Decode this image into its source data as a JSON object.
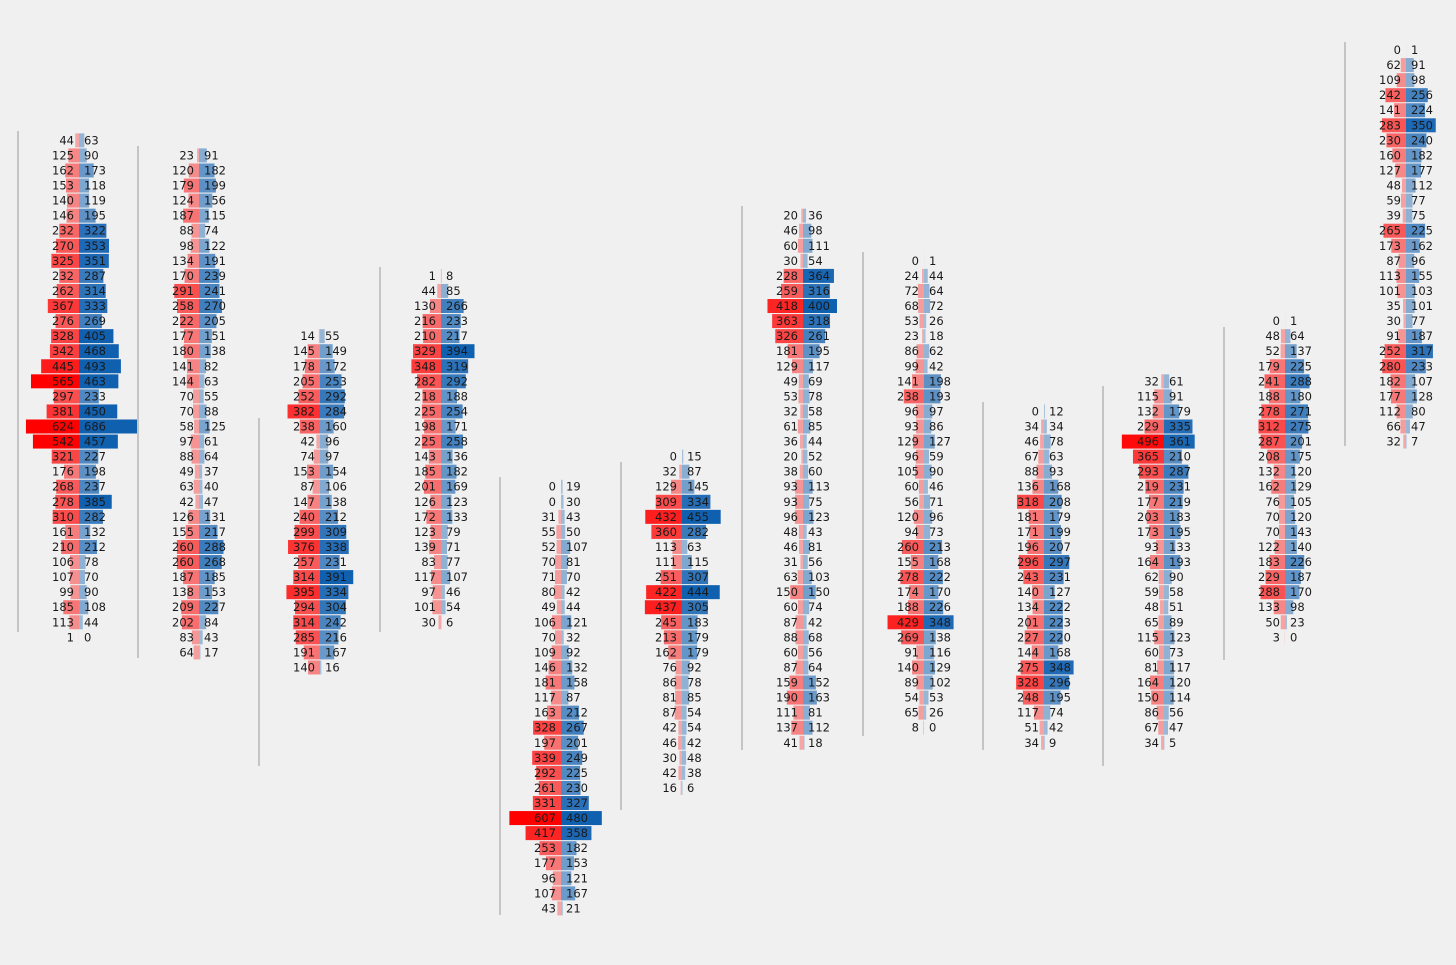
{
  "chart_data": {
    "type": "footprint",
    "title": "",
    "xlabel": "",
    "ylabel": "",
    "colors": {
      "bid": "#ff0000",
      "ask": "#1060b0",
      "background": "#f0f0f0",
      "wick": "#333333"
    },
    "candles": [
      {
        "rows": [
          [
            44,
            63
          ],
          [
            125,
            90
          ],
          [
            162,
            173
          ],
          [
            153,
            118
          ],
          [
            140,
            119
          ],
          [
            146,
            195
          ],
          [
            232,
            322
          ],
          [
            270,
            353
          ],
          [
            325,
            351
          ],
          [
            232,
            287
          ],
          [
            262,
            314
          ],
          [
            367,
            333
          ],
          [
            276,
            269
          ],
          [
            328,
            405
          ],
          [
            342,
            468
          ],
          [
            445,
            493
          ],
          [
            565,
            463
          ],
          [
            297,
            233
          ],
          [
            381,
            450
          ],
          [
            624,
            686
          ],
          [
            542,
            457
          ],
          [
            321,
            227
          ],
          [
            176,
            198
          ],
          [
            268,
            237
          ],
          [
            278,
            385
          ],
          [
            310,
            282
          ],
          [
            161,
            132
          ],
          [
            210,
            212
          ],
          [
            106,
            78
          ],
          [
            107,
            70
          ],
          [
            99,
            90
          ],
          [
            185,
            108
          ],
          [
            113,
            44
          ],
          [
            1,
            0
          ]
        ]
      },
      {
        "rows": [
          [
            23,
            91
          ],
          [
            120,
            182
          ],
          [
            179,
            199
          ],
          [
            124,
            156
          ],
          [
            187,
            115
          ],
          [
            88,
            74
          ],
          [
            98,
            122
          ],
          [
            134,
            191
          ],
          [
            170,
            239
          ],
          [
            291,
            241
          ],
          [
            258,
            270
          ],
          [
            222,
            205
          ],
          [
            177,
            151
          ],
          [
            180,
            138
          ],
          [
            141,
            82
          ],
          [
            144,
            63
          ],
          [
            70,
            55
          ],
          [
            70,
            88
          ],
          [
            58,
            125
          ],
          [
            97,
            61
          ],
          [
            88,
            64
          ],
          [
            49,
            37
          ],
          [
            63,
            40
          ],
          [
            42,
            47
          ],
          [
            126,
            131
          ],
          [
            155,
            217
          ],
          [
            260,
            288
          ],
          [
            260,
            268
          ],
          [
            187,
            185
          ],
          [
            138,
            153
          ],
          [
            209,
            227
          ],
          [
            202,
            84
          ],
          [
            83,
            43
          ],
          [
            64,
            17
          ]
        ]
      },
      {
        "rows": [
          [
            14,
            55
          ],
          [
            145,
            149
          ],
          [
            178,
            172
          ],
          [
            205,
            253
          ],
          [
            252,
            292
          ],
          [
            382,
            284
          ],
          [
            238,
            160
          ],
          [
            42,
            96
          ],
          [
            74,
            97
          ],
          [
            153,
            154
          ],
          [
            87,
            106
          ],
          [
            147,
            138
          ],
          [
            240,
            212
          ],
          [
            299,
            309
          ],
          [
            376,
            338
          ],
          [
            257,
            231
          ],
          [
            314,
            391
          ],
          [
            395,
            334
          ],
          [
            294,
            304
          ],
          [
            314,
            242
          ],
          [
            285,
            216
          ],
          [
            191,
            167
          ],
          [
            140,
            16
          ]
        ]
      },
      {
        "rows": [
          [
            1,
            8
          ],
          [
            44,
            85
          ],
          [
            130,
            266
          ],
          [
            216,
            233
          ],
          [
            210,
            217
          ],
          [
            329,
            394
          ],
          [
            348,
            319
          ],
          [
            282,
            292
          ],
          [
            218,
            188
          ],
          [
            225,
            254
          ],
          [
            198,
            171
          ],
          [
            225,
            258
          ],
          [
            143,
            136
          ],
          [
            185,
            182
          ],
          [
            201,
            169
          ],
          [
            126,
            123
          ],
          [
            172,
            133
          ],
          [
            123,
            79
          ],
          [
            139,
            71
          ],
          [
            83,
            77
          ],
          [
            117,
            107
          ],
          [
            97,
            46
          ],
          [
            101,
            54
          ],
          [
            30,
            6
          ]
        ]
      },
      {
        "rows": [
          [
            0,
            19
          ],
          [
            0,
            30
          ],
          [
            31,
            43
          ],
          [
            55,
            50
          ],
          [
            52,
            107
          ],
          [
            70,
            81
          ],
          [
            71,
            70
          ],
          [
            80,
            42
          ],
          [
            49,
            44
          ],
          [
            106,
            121
          ],
          [
            70,
            32
          ],
          [
            109,
            92
          ],
          [
            146,
            132
          ],
          [
            181,
            158
          ],
          [
            117,
            87
          ],
          [
            163,
            212
          ],
          [
            328,
            267
          ],
          [
            197,
            201
          ],
          [
            339,
            249
          ],
          [
            292,
            225
          ],
          [
            261,
            230
          ],
          [
            331,
            327
          ],
          [
            607,
            480
          ],
          [
            417,
            358
          ],
          [
            253,
            182
          ],
          [
            177,
            153
          ],
          [
            96,
            121
          ],
          [
            107,
            167
          ],
          [
            43,
            21
          ]
        ]
      },
      {
        "rows": [
          [
            0,
            15
          ],
          [
            32,
            87
          ],
          [
            129,
            145
          ],
          [
            309,
            334
          ],
          [
            432,
            455
          ],
          [
            360,
            282
          ],
          [
            113,
            63
          ],
          [
            111,
            115
          ],
          [
            251,
            307
          ],
          [
            422,
            444
          ],
          [
            437,
            305
          ],
          [
            245,
            183
          ],
          [
            213,
            179
          ],
          [
            162,
            179
          ],
          [
            76,
            92
          ],
          [
            86,
            78
          ],
          [
            81,
            85
          ],
          [
            87,
            54
          ],
          [
            42,
            54
          ],
          [
            46,
            42
          ],
          [
            30,
            48
          ],
          [
            42,
            38
          ],
          [
            16,
            6
          ]
        ]
      },
      {
        "rows": [
          [
            20,
            36
          ],
          [
            46,
            98
          ],
          [
            60,
            111
          ],
          [
            30,
            54
          ],
          [
            228,
            364
          ],
          [
            259,
            316
          ],
          [
            418,
            400
          ],
          [
            363,
            318
          ],
          [
            326,
            261
          ],
          [
            181,
            195
          ],
          [
            129,
            117
          ],
          [
            49,
            69
          ],
          [
            53,
            78
          ],
          [
            32,
            58
          ],
          [
            61,
            85
          ],
          [
            36,
            44
          ],
          [
            20,
            52
          ],
          [
            38,
            60
          ],
          [
            93,
            113
          ],
          [
            93,
            75
          ],
          [
            96,
            123
          ],
          [
            48,
            43
          ],
          [
            46,
            81
          ],
          [
            31,
            56
          ],
          [
            63,
            103
          ],
          [
            150,
            150
          ],
          [
            60,
            74
          ],
          [
            87,
            42
          ],
          [
            88,
            68
          ],
          [
            60,
            56
          ],
          [
            87,
            64
          ],
          [
            159,
            152
          ],
          [
            190,
            163
          ],
          [
            111,
            81
          ],
          [
            137,
            112
          ],
          [
            41,
            18
          ]
        ]
      },
      {
        "rows": [
          [
            0,
            1
          ],
          [
            24,
            44
          ],
          [
            72,
            64
          ],
          [
            68,
            72
          ],
          [
            53,
            26
          ],
          [
            23,
            18
          ],
          [
            86,
            62
          ],
          [
            99,
            42
          ],
          [
            141,
            198
          ],
          [
            238,
            193
          ],
          [
            96,
            97
          ],
          [
            93,
            86
          ],
          [
            129,
            127
          ],
          [
            96,
            59
          ],
          [
            105,
            90
          ],
          [
            60,
            46
          ],
          [
            56,
            71
          ],
          [
            120,
            96
          ],
          [
            94,
            73
          ],
          [
            260,
            213
          ],
          [
            155,
            168
          ],
          [
            278,
            222
          ],
          [
            174,
            170
          ],
          [
            188,
            226
          ],
          [
            429,
            348
          ],
          [
            269,
            138
          ],
          [
            91,
            116
          ],
          [
            140,
            129
          ],
          [
            89,
            102
          ],
          [
            54,
            53
          ],
          [
            65,
            26
          ],
          [
            8,
            0
          ]
        ]
      },
      {
        "rows": [
          [
            0,
            12
          ],
          [
            34,
            34
          ],
          [
            46,
            78
          ],
          [
            67,
            63
          ],
          [
            88,
            93
          ],
          [
            136,
            168
          ],
          [
            318,
            208
          ],
          [
            181,
            179
          ],
          [
            171,
            199
          ],
          [
            196,
            207
          ],
          [
            296,
            297
          ],
          [
            243,
            231
          ],
          [
            140,
            127
          ],
          [
            134,
            222
          ],
          [
            201,
            223
          ],
          [
            227,
            220
          ],
          [
            144,
            168
          ],
          [
            275,
            348
          ],
          [
            328,
            296
          ],
          [
            248,
            195
          ],
          [
            117,
            74
          ],
          [
            51,
            42
          ],
          [
            34,
            9
          ]
        ]
      },
      {
        "rows": [
          [
            32,
            61
          ],
          [
            115,
            91
          ],
          [
            132,
            179
          ],
          [
            229,
            335
          ],
          [
            496,
            361
          ],
          [
            365,
            210
          ],
          [
            293,
            287
          ],
          [
            219,
            231
          ],
          [
            177,
            219
          ],
          [
            203,
            183
          ],
          [
            173,
            195
          ],
          [
            93,
            133
          ],
          [
            164,
            193
          ],
          [
            62,
            90
          ],
          [
            59,
            58
          ],
          [
            48,
            51
          ],
          [
            65,
            89
          ],
          [
            115,
            123
          ],
          [
            60,
            73
          ],
          [
            81,
            117
          ],
          [
            164,
            120
          ],
          [
            150,
            114
          ],
          [
            86,
            56
          ],
          [
            67,
            47
          ],
          [
            34,
            5
          ]
        ]
      },
      {
        "rows": [
          [
            0,
            1
          ],
          [
            48,
            64
          ],
          [
            52,
            137
          ],
          [
            179,
            225
          ],
          [
            241,
            288
          ],
          [
            188,
            180
          ],
          [
            278,
            271
          ],
          [
            312,
            275
          ],
          [
            287,
            201
          ],
          [
            208,
            175
          ],
          [
            132,
            120
          ],
          [
            162,
            129
          ],
          [
            76,
            105
          ],
          [
            70,
            120
          ],
          [
            70,
            143
          ],
          [
            122,
            140
          ],
          [
            183,
            226
          ],
          [
            229,
            187
          ],
          [
            288,
            170
          ],
          [
            133,
            98
          ],
          [
            50,
            23
          ],
          [
            3,
            0
          ]
        ]
      },
      {
        "rows": [
          [
            0,
            1
          ],
          [
            62,
            91
          ],
          [
            109,
            98
          ],
          [
            242,
            256
          ],
          [
            141,
            224
          ],
          [
            283,
            350
          ],
          [
            230,
            240
          ],
          [
            160,
            182
          ],
          [
            127,
            177
          ],
          [
            48,
            112
          ],
          [
            59,
            77
          ],
          [
            39,
            75
          ],
          [
            265,
            225
          ],
          [
            173,
            162
          ],
          [
            87,
            96
          ],
          [
            113,
            155
          ],
          [
            101,
            103
          ],
          [
            35,
            101
          ],
          [
            30,
            77
          ],
          [
            91,
            187
          ],
          [
            252,
            317
          ],
          [
            280,
            233
          ],
          [
            182,
            107
          ],
          [
            177,
            128
          ],
          [
            112,
            80
          ],
          [
            66,
            47
          ],
          [
            32,
            7
          ]
        ]
      }
    ]
  }
}
